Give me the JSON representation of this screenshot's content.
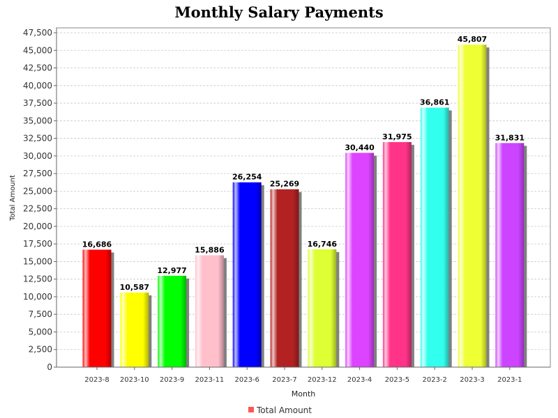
{
  "chart_data": {
    "type": "bar",
    "title": "Monthly Salary Payments",
    "xlabel": "Month",
    "ylabel": "Total Amount",
    "categories": [
      "2023-8",
      "2023-10",
      "2023-9",
      "2023-11",
      "2023-6",
      "2023-7",
      "2023-12",
      "2023-4",
      "2023-5",
      "2023-2",
      "2023-3",
      "2023-1"
    ],
    "values": [
      16686,
      10587,
      12977,
      15886,
      26254,
      25269,
      16746,
      30440,
      31975,
      36861,
      45807,
      31831
    ],
    "value_labels": [
      "16,686",
      "10,587",
      "12,977",
      "15,886",
      "26,254",
      "25,269",
      "16,746",
      "30,440",
      "31,975",
      "36,861",
      "45,807",
      "31,831"
    ],
    "bar_colors": [
      "#ff0000",
      "#ffff00",
      "#00ff00",
      "#ffc0cb",
      "#0000ff",
      "#b22222",
      "#ddff33",
      "#dd44ff",
      "#ff3388",
      "#33ffee",
      "#eeff33",
      "#cc44ff"
    ],
    "ylim": [
      0,
      47500
    ],
    "yticks": [
      0,
      2500,
      5000,
      7500,
      10000,
      12500,
      15000,
      17500,
      20000,
      22500,
      25000,
      27500,
      30000,
      32500,
      35000,
      37500,
      40000,
      42500,
      45000,
      47500
    ],
    "ytick_labels": [
      "0",
      "2,500",
      "5,000",
      "7,500",
      "10,000",
      "12,500",
      "15,000",
      "17,500",
      "20,000",
      "22,500",
      "25,000",
      "27,500",
      "30,000",
      "32,500",
      "35,000",
      "37,500",
      "40,000",
      "42,500",
      "45,000",
      "47,500"
    ],
    "grid": true,
    "legend": {
      "position": "bottom",
      "entries": [
        {
          "label": "Total Amount",
          "color": "#ff5555"
        }
      ]
    }
  }
}
